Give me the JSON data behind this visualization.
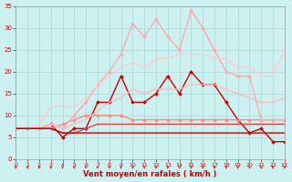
{
  "xlabel": "Vent moyen/en rafales ( km/h )",
  "xlim": [
    0,
    23
  ],
  "ylim": [
    0,
    35
  ],
  "xticks": [
    0,
    1,
    2,
    3,
    4,
    5,
    6,
    7,
    8,
    9,
    10,
    11,
    12,
    13,
    14,
    15,
    16,
    17,
    18,
    19,
    20,
    21,
    22,
    23
  ],
  "yticks": [
    0,
    5,
    10,
    15,
    20,
    25,
    30,
    35
  ],
  "bg_color": "#cdf0f0",
  "grid_color": "#aadddd",
  "series": [
    {
      "x": [
        0,
        1,
        2,
        3,
        4,
        5,
        6,
        7,
        8,
        9,
        10,
        11,
        12,
        13,
        14,
        15,
        16,
        17,
        18,
        19,
        20,
        21,
        22,
        23
      ],
      "y": [
        7,
        7,
        7,
        8,
        5,
        7,
        7,
        13,
        13,
        19,
        13,
        13,
        15,
        19,
        15,
        20,
        17,
        17,
        13,
        9,
        6,
        7,
        4,
        4
      ],
      "color": "#cc0000",
      "lw": 1.0,
      "marker": "D",
      "ms": 2.0
    },
    {
      "x": [
        0,
        1,
        2,
        3,
        4,
        5,
        6,
        7,
        8,
        9,
        10,
        11,
        12,
        13,
        14,
        15,
        16,
        17,
        18,
        19,
        20,
        21,
        22,
        23
      ],
      "y": [
        7,
        7,
        7,
        7,
        8,
        9,
        10,
        10,
        10,
        10,
        9,
        9,
        9,
        9,
        9,
        9,
        9,
        9,
        9,
        9,
        9,
        9,
        9,
        9
      ],
      "color": "#ff8888",
      "lw": 1.0,
      "marker": "D",
      "ms": 2.0
    },
    {
      "x": [
        0,
        1,
        2,
        3,
        4,
        5,
        6,
        7,
        8,
        9,
        10,
        11,
        12,
        13,
        14,
        15,
        16,
        17,
        18,
        19,
        20,
        21,
        22,
        23
      ],
      "y": [
        7,
        7,
        7,
        8,
        7,
        10,
        13,
        17,
        20,
        24,
        31,
        28,
        32,
        28,
        25,
        34,
        30,
        25,
        20,
        19,
        19,
        9,
        9,
        9
      ],
      "color": "#ffaaaa",
      "lw": 1.0,
      "marker": "D",
      "ms": 2.0
    },
    {
      "x": [
        0,
        1,
        2,
        3,
        4,
        5,
        6,
        7,
        8,
        9,
        10,
        11,
        12,
        13,
        14,
        15,
        16,
        17,
        18,
        19,
        20,
        21,
        22,
        23
      ],
      "y": [
        7,
        7,
        8,
        12,
        12,
        12,
        14,
        17,
        19,
        21,
        22,
        21,
        23,
        23,
        24,
        24,
        24,
        23,
        23,
        21,
        21,
        19,
        19,
        25
      ],
      "color": "#ffcccc",
      "lw": 1.0,
      "marker": null,
      "ms": 0
    },
    {
      "x": [
        0,
        1,
        2,
        3,
        4,
        5,
        6,
        7,
        8,
        9,
        10,
        11,
        12,
        13,
        14,
        15,
        16,
        17,
        18,
        19,
        20,
        21,
        22,
        23
      ],
      "y": [
        7,
        7,
        7,
        8,
        7,
        8,
        9,
        11,
        13,
        14,
        16,
        15,
        16,
        16,
        16,
        17,
        17,
        17,
        16,
        15,
        14,
        13,
        13,
        14
      ],
      "color": "#ffbbbb",
      "lw": 1.0,
      "marker": null,
      "ms": 0
    },
    {
      "x": [
        0,
        1,
        2,
        3,
        4,
        5,
        6,
        7,
        8,
        9,
        10,
        11,
        12,
        13,
        14,
        15,
        16,
        17,
        18,
        19,
        20,
        21,
        22,
        23
      ],
      "y": [
        7,
        7,
        7,
        7,
        6,
        6,
        7,
        8,
        8,
        8,
        8,
        8,
        8,
        8,
        8,
        8,
        8,
        8,
        8,
        8,
        8,
        8,
        8,
        8
      ],
      "color": "#dd4444",
      "lw": 1.0,
      "marker": null,
      "ms": 0
    },
    {
      "x": [
        0,
        1,
        2,
        3,
        4,
        5,
        6,
        7,
        8,
        9,
        10,
        11,
        12,
        13,
        14,
        15,
        16,
        17,
        18,
        19,
        20,
        21,
        22,
        23
      ],
      "y": [
        7,
        7,
        7,
        7,
        6,
        6,
        6,
        6,
        6,
        6,
        6,
        6,
        6,
        6,
        6,
        6,
        6,
        6,
        6,
        6,
        6,
        6,
        6,
        6
      ],
      "color": "#cc0000",
      "lw": 1.0,
      "marker": null,
      "ms": 0
    }
  ],
  "arrow_color": "#cc0000"
}
